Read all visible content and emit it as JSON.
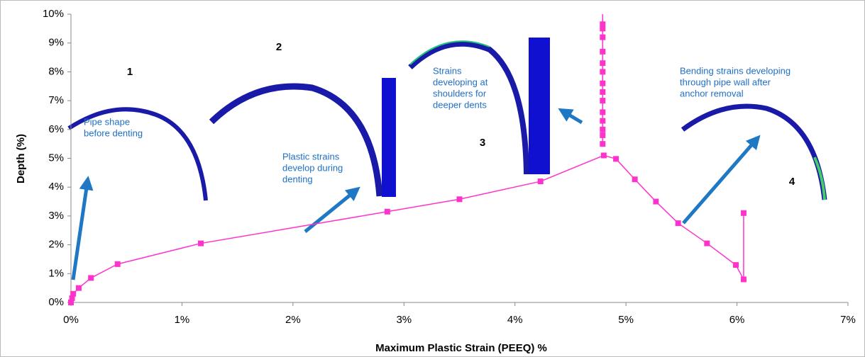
{
  "chart_data": {
    "type": "line",
    "xlabel": "Maximum Plastic Strain (PEEQ) %",
    "ylabel": "Depth (%)",
    "xlim": [
      0,
      7
    ],
    "ylim": [
      0,
      10
    ],
    "xticks": [
      {
        "value": 0,
        "label": "0%"
      },
      {
        "value": 1,
        "label": "1%"
      },
      {
        "value": 2,
        "label": "2%"
      },
      {
        "value": 3,
        "label": "3%"
      },
      {
        "value": 4,
        "label": "4%"
      },
      {
        "value": 5,
        "label": "5%"
      },
      {
        "value": 6,
        "label": "6%"
      },
      {
        "value": 7,
        "label": "7%"
      }
    ],
    "yticks": [
      {
        "value": 0,
        "label": "0%"
      },
      {
        "value": 1,
        "label": "1%"
      },
      {
        "value": 2,
        "label": "2%"
      },
      {
        "value": 3,
        "label": "3%"
      },
      {
        "value": 4,
        "label": "4%"
      },
      {
        "value": 5,
        "label": "5%"
      },
      {
        "value": 6,
        "label": "6%"
      },
      {
        "value": 7,
        "label": "7%"
      },
      {
        "value": 8,
        "label": "8%"
      },
      {
        "value": 9,
        "label": "9%"
      },
      {
        "value": 10,
        "label": "10%"
      }
    ],
    "series": [
      {
        "color": "#ff33cc",
        "x": [
          0,
          0.01,
          0.02,
          0.07,
          0.18,
          0.42,
          1.17,
          2.85,
          3.5,
          4.23,
          4.8,
          4.91,
          5.08,
          5.27,
          5.47,
          5.73,
          5.99,
          6.06,
          6.06
        ],
        "values": [
          0,
          0.15,
          0.3,
          0.5,
          0.85,
          1.33,
          2.05,
          3.15,
          3.58,
          4.2,
          5.1,
          4.98,
          4.27,
          3.5,
          2.75,
          2.05,
          1.3,
          0.8,
          3.1
        ]
      },
      {
        "color": "#ff33cc",
        "x": [
          4.79,
          4.79,
          4.79,
          4.79,
          4.79,
          4.79,
          4.79,
          4.79,
          4.79,
          4.79,
          4.79,
          4.79,
          4.79,
          4.79,
          4.79
        ],
        "values": [
          5.5,
          5.8,
          6.0,
          6.3,
          6.6,
          7.0,
          7.3,
          7.6,
          8.0,
          8.3,
          8.7,
          9.2,
          9.5,
          9.65,
          10
        ]
      }
    ],
    "annotations": [
      {
        "label": "1",
        "text": [
          "Pipe shape",
          "before denting"
        ]
      },
      {
        "label": "2",
        "text": [
          "Plastic strains",
          "develop during",
          "denting"
        ]
      },
      {
        "label": "3",
        "text": [
          "Strains",
          "developing at",
          "shoulders for",
          "deeper dents"
        ]
      },
      {
        "label": "4",
        "text": [
          "Bending strains developing",
          "through pipe wall after",
          "anchor removal"
        ]
      }
    ]
  }
}
